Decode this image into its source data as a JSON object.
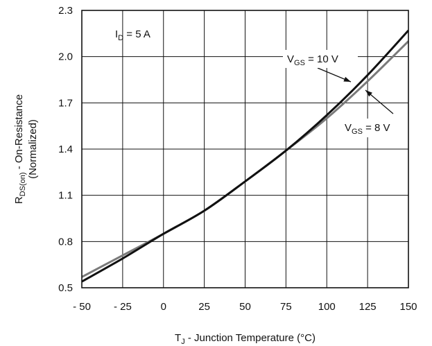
{
  "chart_data": {
    "type": "line",
    "xlabel": {
      "main": "T",
      "sub": "J",
      "rest": " - Junction Temperature (°C)"
    },
    "ylabel": {
      "line1_main": "R",
      "line1_sub": "DS(on)",
      "line1_rest": " - On-Resistance",
      "line2": "(Normalized)"
    },
    "xlim": [
      -50,
      150
    ],
    "ylim": [
      0.5,
      2.3
    ],
    "x_ticks": [
      -50,
      -25,
      0,
      25,
      50,
      75,
      100,
      125,
      150
    ],
    "x_tick_labels": [
      "- 50",
      "- 25",
      "0",
      "25",
      "50",
      "75",
      "100",
      "125",
      "150"
    ],
    "y_ticks": [
      0.5,
      0.8,
      1.1,
      1.4,
      1.7,
      2.0,
      2.3
    ],
    "y_tick_labels": [
      "0.5",
      "0.8",
      "1.1",
      "1.4",
      "1.7",
      "2.0",
      "2.3"
    ],
    "grid": true,
    "annotations": {
      "condition": {
        "main": "I",
        "sub": "D",
        "rest": " = 5 A"
      },
      "vgs10": {
        "main": "V",
        "sub": "GS",
        "rest": " = 10 V"
      },
      "vgs8": {
        "main": "V",
        "sub": "GS",
        "rest": " = 8 V"
      }
    },
    "series": [
      {
        "id": "vgs10",
        "color": "#111111",
        "x": [
          -50,
          -25,
          0,
          25,
          50,
          75,
          100,
          125,
          150
        ],
        "y": [
          0.54,
          0.69,
          0.85,
          1.0,
          1.19,
          1.39,
          1.62,
          1.88,
          2.17
        ]
      },
      {
        "id": "vgs8",
        "color": "#7a7a7a",
        "x": [
          -50,
          -25,
          0,
          25,
          50,
          75,
          100,
          125,
          150
        ],
        "y": [
          0.57,
          0.71,
          0.85,
          1.0,
          1.19,
          1.39,
          1.6,
          1.84,
          2.1
        ]
      }
    ]
  }
}
